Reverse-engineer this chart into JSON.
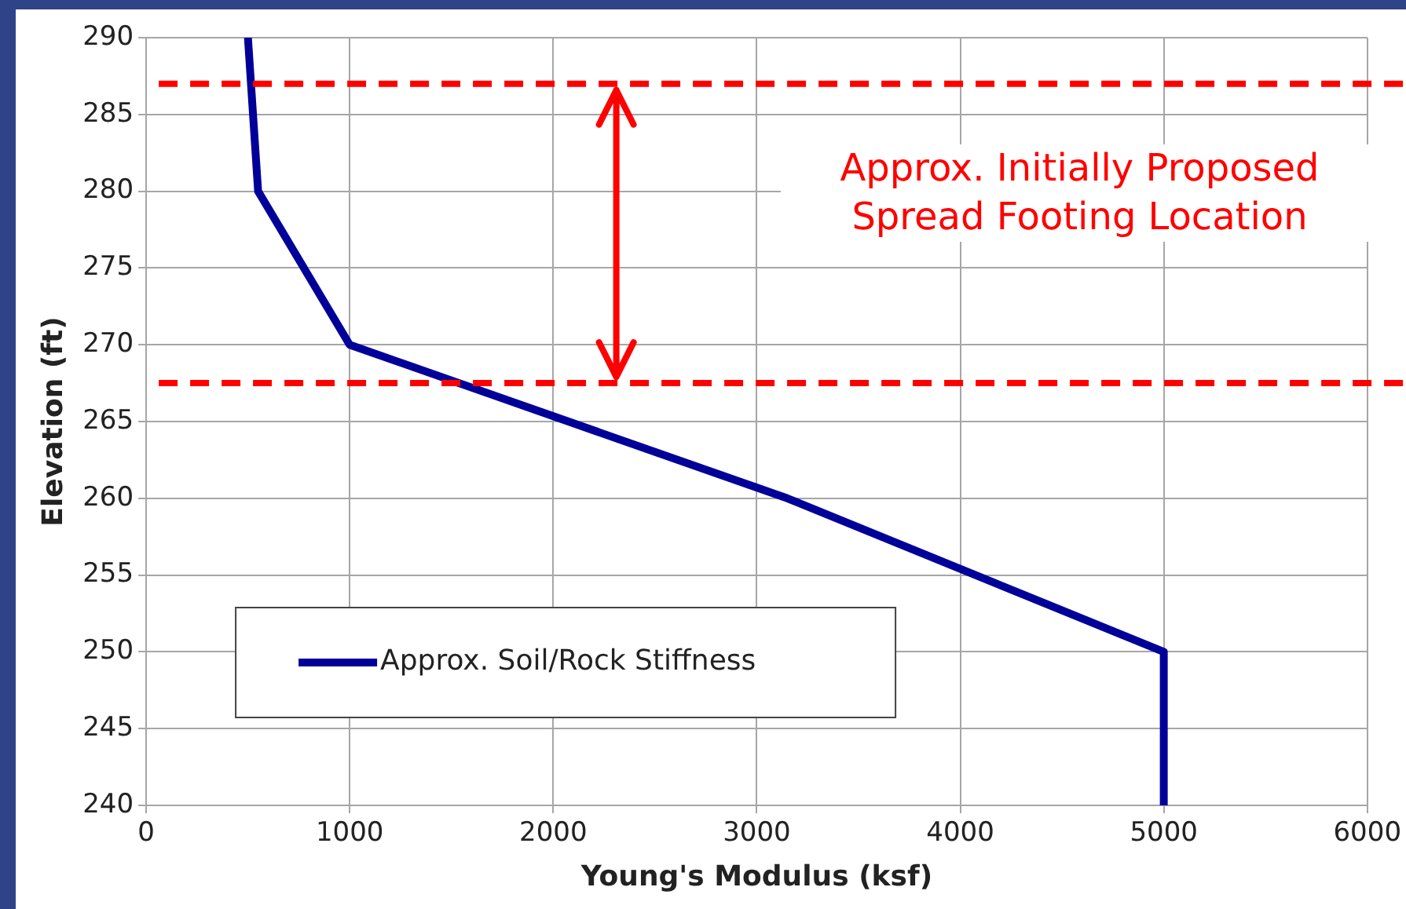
{
  "chart_data": {
    "type": "line",
    "xlabel": "Young's Modulus (ksf)",
    "ylabel": "Elevation (ft)",
    "x": [
      500,
      550,
      1000,
      3150,
      5000,
      5000
    ],
    "series": [
      {
        "name": "Approx. Soil/Rock Stiffness",
        "color": "#000099",
        "values": [
          290,
          280,
          270,
          260,
          250,
          240
        ]
      }
    ],
    "xlim": [
      0,
      6000
    ],
    "xticks": [
      0,
      1000,
      2000,
      3000,
      4000,
      5000,
      6000
    ],
    "ylim": [
      240,
      290
    ],
    "yticks": [
      240,
      245,
      250,
      255,
      260,
      265,
      270,
      275,
      280,
      285,
      290
    ],
    "ref_lines": [
      {
        "axis": "y",
        "value": 287,
        "color": "#ff0000",
        "line_style": "dashed"
      },
      {
        "axis": "y",
        "value": 267.5,
        "color": "#ff0000",
        "line_style": "dashed"
      }
    ],
    "annotations": [
      "Approx. Initially Proposed Spread Footing Location"
    ],
    "grid": true,
    "legend": "bottom left",
    "marker": "none",
    "line_style": "solid"
  }
}
